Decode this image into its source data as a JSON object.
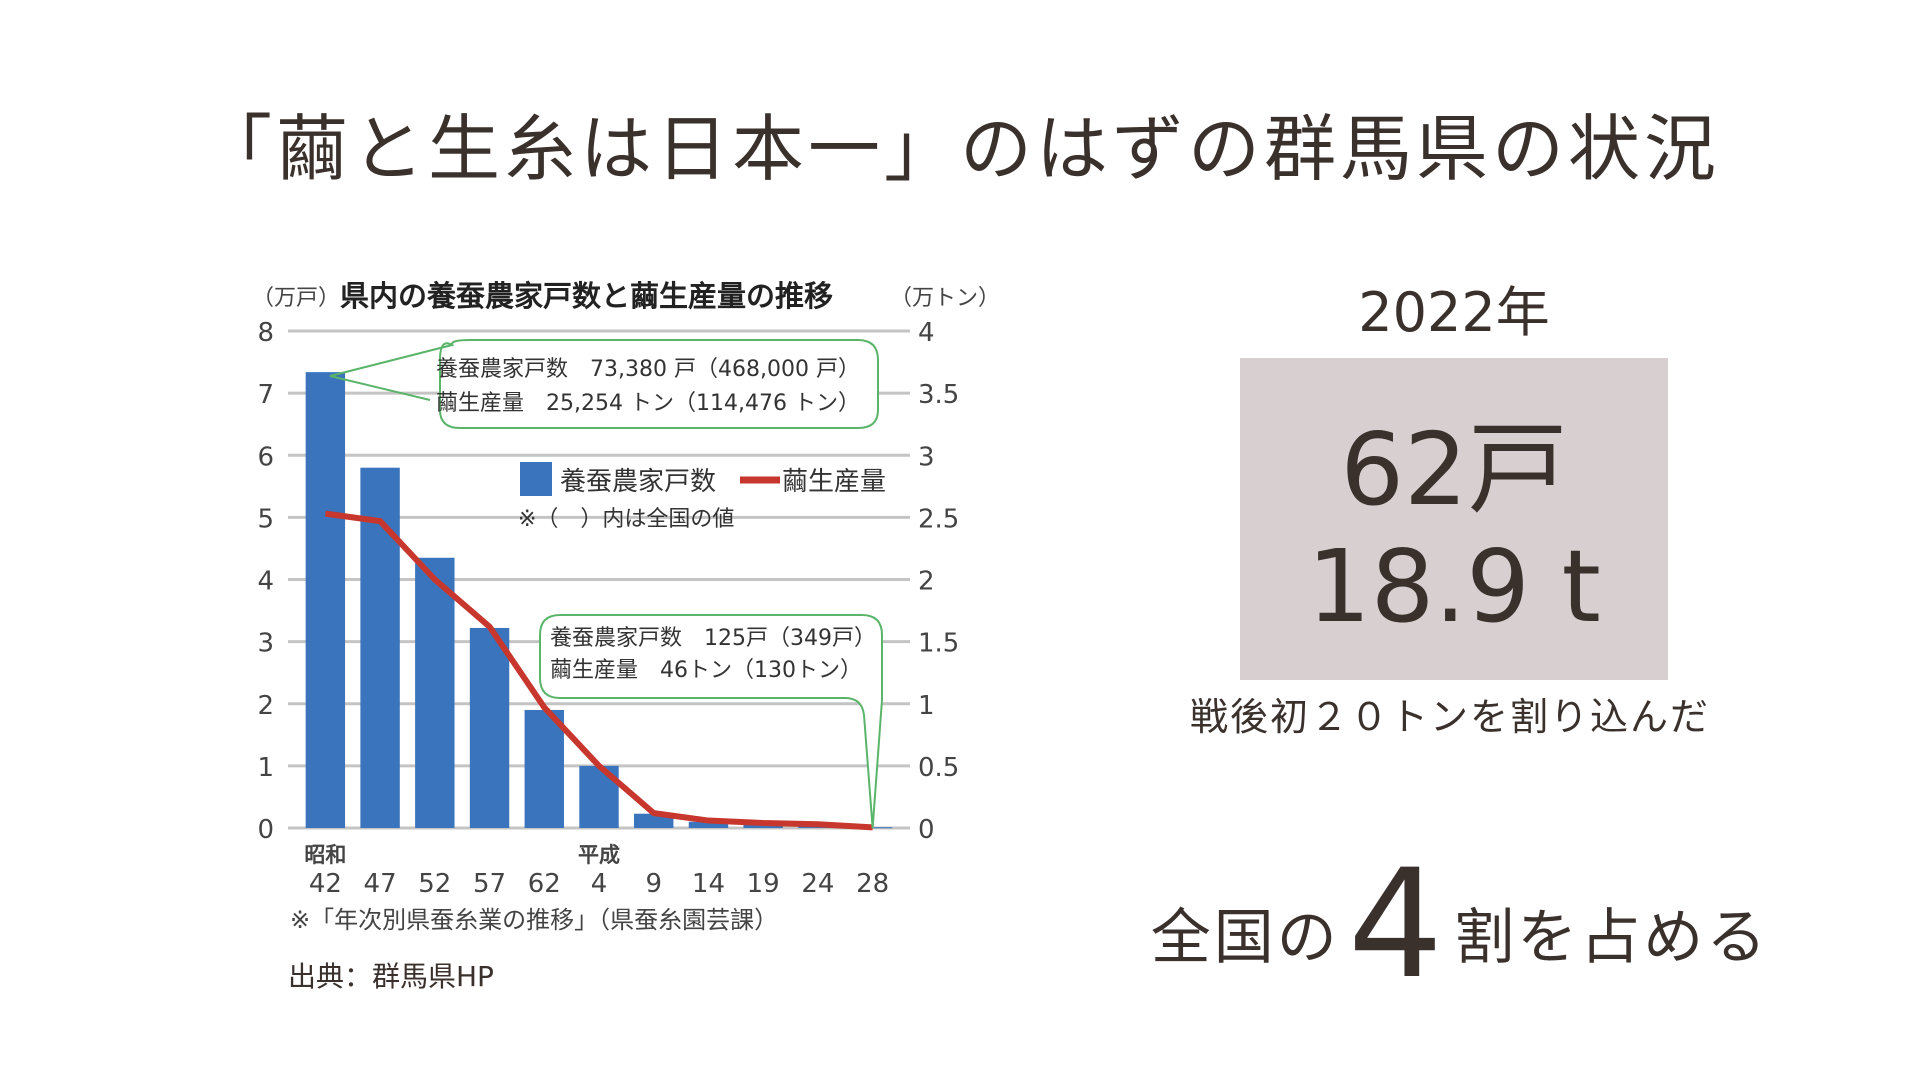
{
  "title": "「繭と生糸は日本一」のはずの群馬県の状況",
  "right_panel": {
    "year": "2022年",
    "households": "62戸",
    "production": "18.9 t",
    "note": "戦後初２０トンを割り込んだ",
    "share_prefix": "全国の",
    "share_number": "4",
    "share_suffix": "割を占める"
  },
  "source": "出典：群馬県HP",
  "colors": {
    "bar": "#3a74bd",
    "line": "#c8372d",
    "callout": "#5ab56a",
    "box": "#d8cfd0"
  },
  "chart_data": {
    "type": "bar+line",
    "title": "県内の養蚕農家戸数と繭生産量の推移",
    "left_unit": "（万戸）",
    "right_unit": "（万トン）",
    "era_labels": [
      {
        "label": "昭和",
        "at": "42"
      },
      {
        "label": "平成",
        "at": "4"
      }
    ],
    "categories": [
      "42",
      "47",
      "52",
      "57",
      "62",
      "4",
      "9",
      "14",
      "19",
      "24",
      "28"
    ],
    "left_ylim": [
      0,
      8
    ],
    "left_ticks": [
      "0",
      "1",
      "2",
      "3",
      "4",
      "5",
      "6",
      "7",
      "8"
    ],
    "right_ylim": [
      0,
      4
    ],
    "right_ticks": [
      "0",
      "0.5",
      "1",
      "1.5",
      "2",
      "2.5",
      "3",
      "3.5",
      "4"
    ],
    "grid": true,
    "series": [
      {
        "name": "養蚕農家戸数",
        "type": "bar",
        "axis": "left",
        "values": [
          7.338,
          5.8,
          4.35,
          3.22,
          1.9,
          1.0,
          0.23,
          0.1,
          0.05,
          0.03,
          0.0125
        ]
      },
      {
        "name": "繭生産量",
        "type": "line",
        "axis": "right",
        "values": [
          2.53,
          2.47,
          2.0,
          1.62,
          0.97,
          0.5,
          0.12,
          0.06,
          0.04,
          0.03,
          0.0046
        ]
      }
    ],
    "legend_note": "※（　）内は全国の値",
    "callout_first": [
      "養蚕農家戸数　73,380 戸（468,000 戸）",
      "繭生産量　25,254 トン（114,476 トン）"
    ],
    "callout_last": [
      "養蚕農家戸数　125戸（349戸）",
      "繭生産量　46トン（130トン）"
    ],
    "footnote": "※「年次別県蚕糸業の推移」（県蚕糸園芸課）"
  }
}
